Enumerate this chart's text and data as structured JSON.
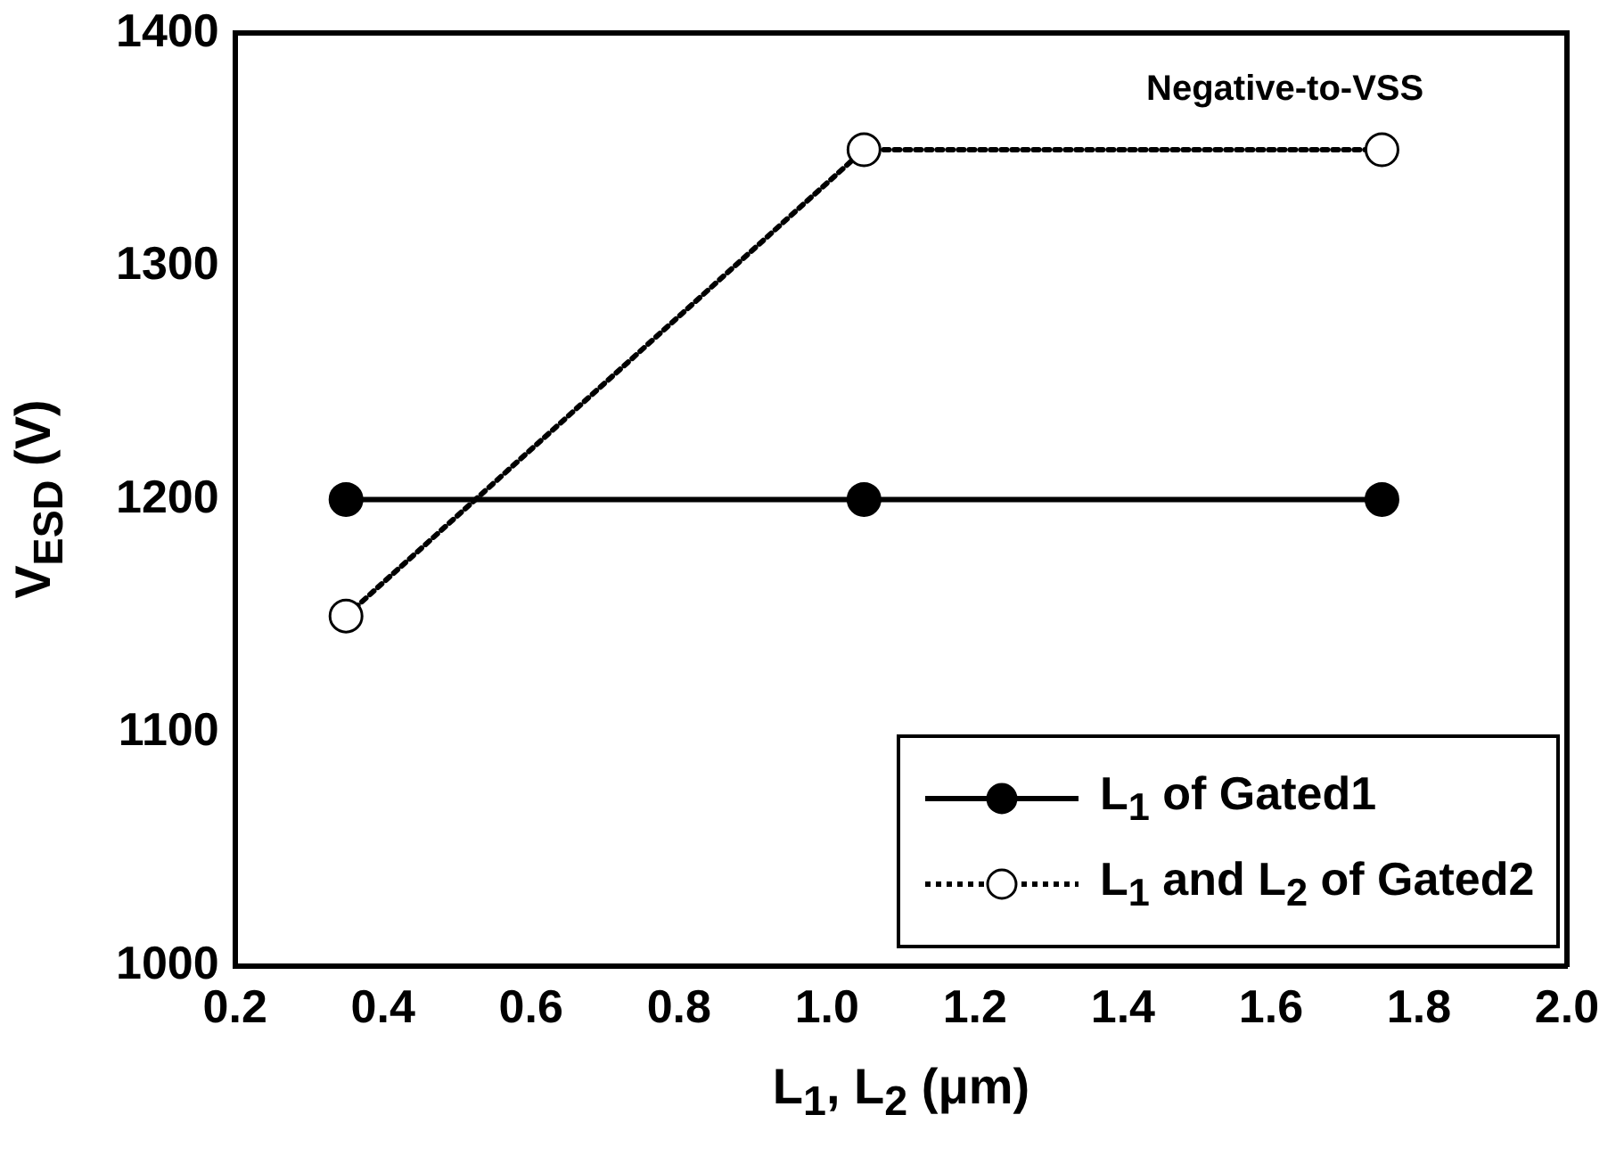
{
  "chart_data": {
    "type": "line",
    "xlabel": "L$_{1}$, L$_{2}$ (μm)",
    "ylabel": "V$_{ESD}$ (V)",
    "x": [
      0.35,
      1.05,
      1.75
    ],
    "series": [
      {
        "name": "L$_{1}$ of Gated1",
        "color": "#000000",
        "values": [
          1200,
          1200,
          1200
        ],
        "line_style": "solid",
        "marker": "circle"
      },
      {
        "name": "L$_{1}$ and L$_{2}$ of Gated2",
        "color": "#000000",
        "values": [
          1150,
          1350,
          1350
        ],
        "line_style": "dotted",
        "marker": "circle"
      }
    ],
    "xlim": [
      0.2,
      2.0
    ],
    "xticks": [
      0.2,
      0.4,
      0.6,
      0.8,
      {
        "value": 1,
        "label": "1.0"
      },
      1.2,
      1.4,
      1.6,
      1.8,
      {
        "value": 2,
        "label": "2.0"
      }
    ],
    "ylim": [
      1000,
      1400
    ],
    "yticks": [
      1000,
      1100,
      1200,
      1300,
      1400
    ],
    "annotations": [
      "Negative-to-VSS"
    ],
    "grid": false,
    "legend": "bottom right"
  }
}
